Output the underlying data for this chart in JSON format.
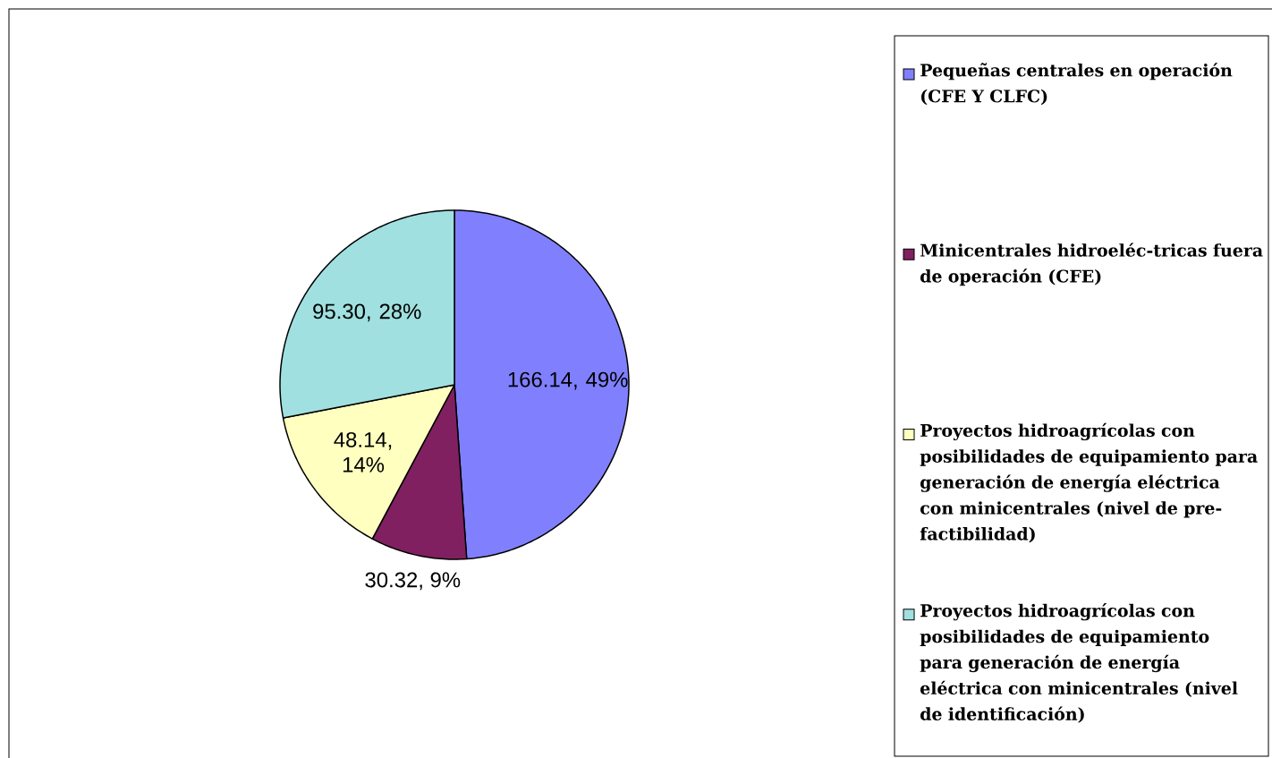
{
  "chart_data": {
    "type": "pie",
    "categories": [
      "Pequeñas centrales en operación (CFE Y CLFC)",
      "Minicentrales hidroeléc-tricas fuera de operación (CFE)",
      "Proyectos hidroagrícolas con posibilidades de equipamiento para generación de energía eléctrica con minicentrales (nivel de pre-factibilidad)",
      "Proyectos hidroagrícolas con posibilidades de equipamiento para generación de energía eléctrica con minicentrales (nivel de identificación)"
    ],
    "values": [
      166.14,
      30.32,
      48.14,
      95.3
    ],
    "value_labels": [
      "166.14, 49%",
      "30.32, 9%",
      "48.14, 14%",
      "95.30, 28%"
    ],
    "colors": [
      "#8080ff",
      "#802060",
      "#ffffc0",
      "#a0e0e0"
    ],
    "legend": "right"
  }
}
